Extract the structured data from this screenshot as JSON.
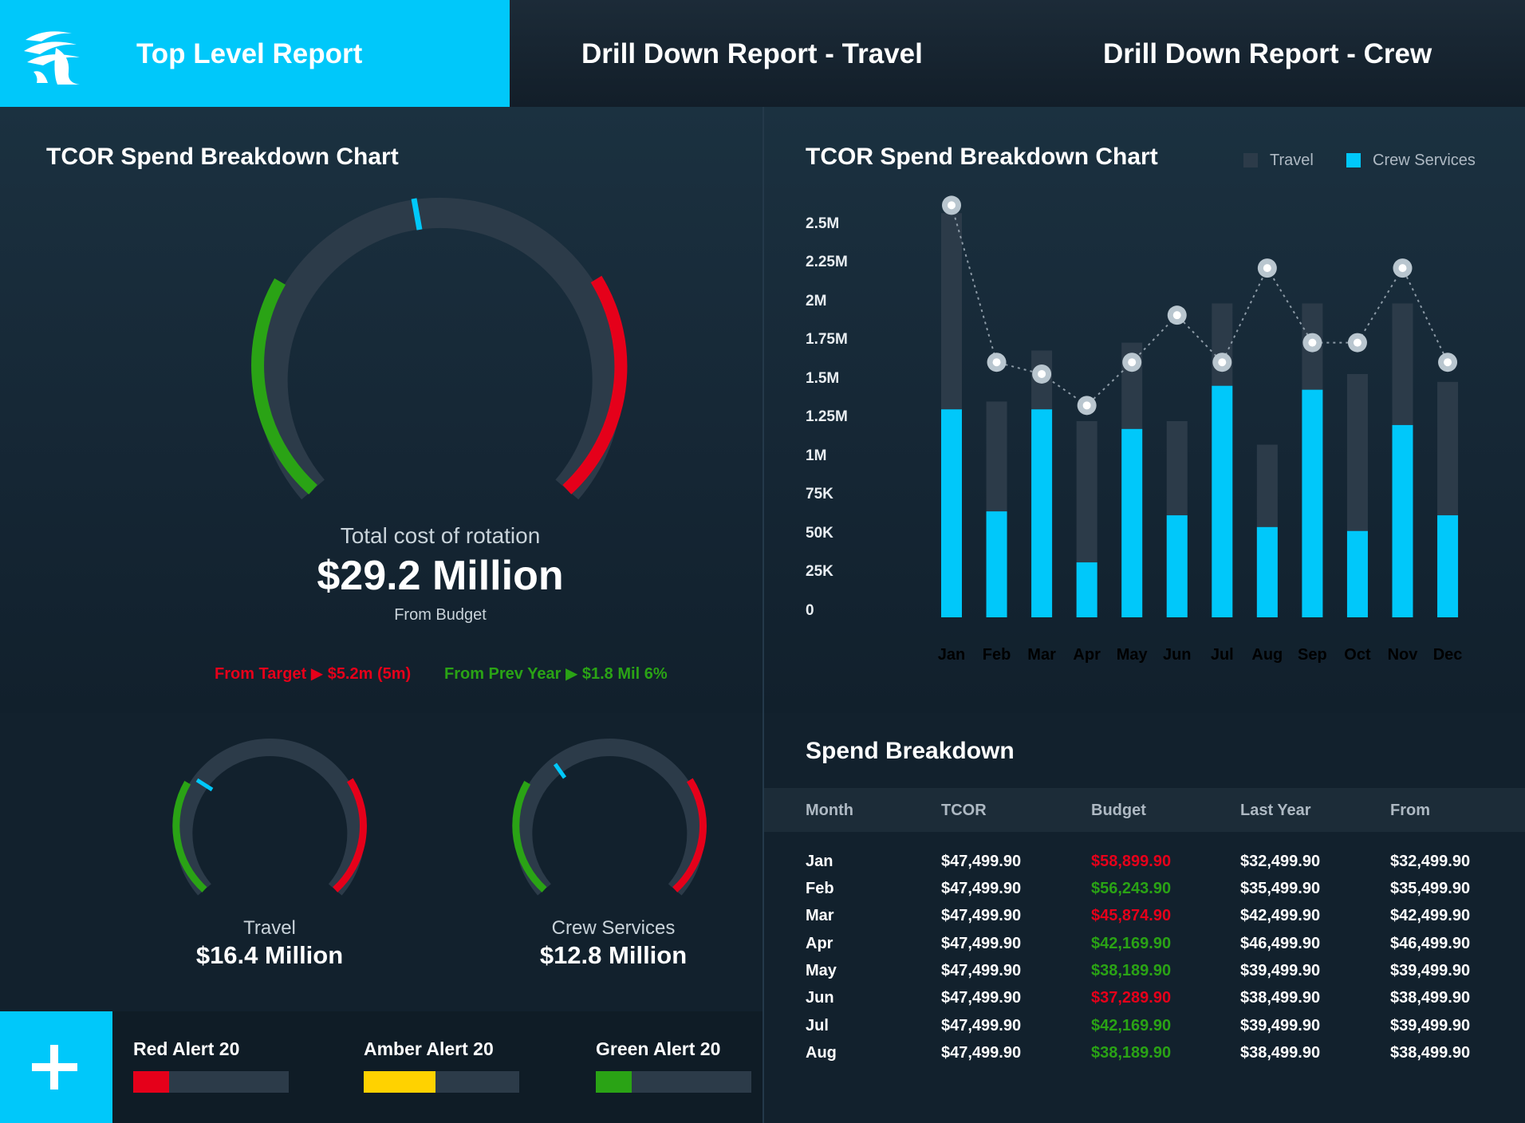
{
  "nav": {
    "tabs": [
      {
        "label": "Top Level Report",
        "active": true
      },
      {
        "label": "Drill Down Report - Travel",
        "active": false
      },
      {
        "label": "Drill Down Report - Crew",
        "active": false
      }
    ],
    "logo_icon": "bird-logo-icon"
  },
  "colors": {
    "accent": "#00c8fa",
    "red": "#e5001a",
    "green": "#2aa315",
    "amber": "#ffd200",
    "track": "#2c3b49",
    "travel": "#2c3b49",
    "crew": "#00c8fa"
  },
  "left_panel": {
    "title": "TCOR Spend Breakdown Chart",
    "gauge": {
      "caption": "Total cost of rotation",
      "value": "$29.2 Million",
      "sub": "From Budget",
      "from_target": "From Target ▶ $5.2m (5m)",
      "from_prev_year": "From Prev Year ▶ $1.8 Mil 6%"
    },
    "mini_gauges": [
      {
        "label": "Travel",
        "value": "$16.4 Million"
      },
      {
        "label": "Crew Services",
        "value": "$12.8 Million"
      }
    ]
  },
  "alerts": {
    "add_icon": "plus-icon",
    "items": [
      {
        "label": "Red Alert 20",
        "fraction": 0.23,
        "color": "#e5001a"
      },
      {
        "label": "Amber Alert 20",
        "fraction": 0.46,
        "color": "#ffd200"
      },
      {
        "label": "Green Alert 20",
        "fraction": 0.23,
        "color": "#2aa315"
      }
    ]
  },
  "chart_data": {
    "type": "bar",
    "title": "TCOR Spend Breakdown Chart",
    "legend_position": "top-right",
    "grid": false,
    "categories": [
      "Jan",
      "Feb",
      "Mar",
      "Apr",
      "May",
      "Jun",
      "Jul",
      "Aug",
      "Sep",
      "Oct",
      "Nov",
      "Dec"
    ],
    "y_tick_labels": [
      "2.5M",
      "2.25M",
      "2M",
      "1.75M",
      "1.5M",
      "1.25M",
      "1M",
      "75K",
      "50K",
      "25K",
      "0"
    ],
    "ylim": [
      0,
      10
    ],
    "series": [
      {
        "name": "Travel",
        "values": [
          10.3,
          5.5,
          6.8,
          5.0,
          7.0,
          5.0,
          8.0,
          4.4,
          8.0,
          6.2,
          8.0,
          6.0
        ]
      },
      {
        "name": "Crew Services",
        "values": [
          5.3,
          2.7,
          5.3,
          1.4,
          4.8,
          2.6,
          5.9,
          2.3,
          5.8,
          2.2,
          4.9,
          2.6
        ]
      }
    ],
    "line_series": {
      "values": [
        10.5,
        6.5,
        6.2,
        5.4,
        6.5,
        7.7,
        6.5,
        8.9,
        7.0,
        7.0,
        8.9,
        6.5
      ]
    }
  },
  "table": {
    "title": "Spend Breakdown",
    "headers": [
      "Month",
      "TCOR",
      "Budget",
      "Last Year",
      "From"
    ],
    "rows": [
      {
        "month": "Jan",
        "tcor": "$47,499.90",
        "budget": "$58,899.90",
        "budget_status": "over",
        "last_year": "$32,499.90",
        "from": "$32,499.90"
      },
      {
        "month": "Feb",
        "tcor": "$47,499.90",
        "budget": "$56,243.90",
        "budget_status": "under",
        "last_year": "$35,499.90",
        "from": "$35,499.90"
      },
      {
        "month": "Mar",
        "tcor": "$47,499.90",
        "budget": "$45,874.90",
        "budget_status": "over",
        "last_year": "$42,499.90",
        "from": "$42,499.90"
      },
      {
        "month": "Apr",
        "tcor": "$47,499.90",
        "budget": "$42,169.90",
        "budget_status": "under",
        "last_year": "$46,499.90",
        "from": "$46,499.90"
      },
      {
        "month": "May",
        "tcor": "$47,499.90",
        "budget": "$38,189.90",
        "budget_status": "under",
        "last_year": "$39,499.90",
        "from": "$39,499.90"
      },
      {
        "month": "Jun",
        "tcor": "$47,499.90",
        "budget": "$37,289.90",
        "budget_status": "over",
        "last_year": "$38,499.90",
        "from": "$38,499.90"
      },
      {
        "month": "Jul",
        "tcor": "$47,499.90",
        "budget": "$42,169.90",
        "budget_status": "under",
        "last_year": "$39,499.90",
        "from": "$39,499.90"
      },
      {
        "month": "Aug",
        "tcor": "$47,499.90",
        "budget": "$38,189.90",
        "budget_status": "under",
        "last_year": "$38,499.90",
        "from": "$38,499.90"
      }
    ]
  }
}
